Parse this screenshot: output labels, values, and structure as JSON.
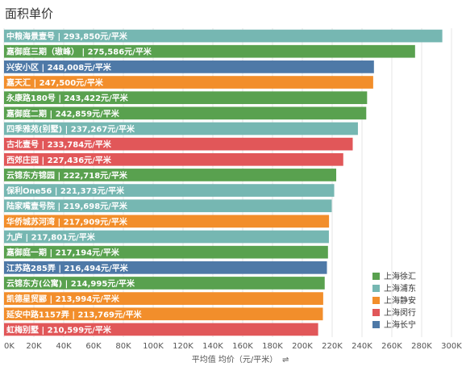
{
  "chart_data": {
    "type": "bar",
    "orientation": "horizontal",
    "title": "面积单价",
    "xlabel": "平均值 均价（元/平米）",
    "ylabel": "",
    "xlim": [
      0,
      300000
    ],
    "x_ticks": [
      "0K",
      "20K",
      "40K",
      "60K",
      "80K",
      "100K",
      "120K",
      "140K",
      "160K",
      "180K",
      "200K",
      "220K",
      "240K",
      "260K",
      "280K",
      "300K"
    ],
    "grid": true,
    "legend_position": "bottom-right",
    "bars": [
      {
        "label": "中粮海景壹号 | 293,850元/平米",
        "value": 293850,
        "group": "上海浦东"
      },
      {
        "label": "嘉御庭三期（璈峰） | 275,586元/平米",
        "value": 275586,
        "group": "上海徐汇"
      },
      {
        "label": "兴安小区 | 248,008元/平米",
        "value": 248008,
        "group": "上海长宁"
      },
      {
        "label": "嘉天汇 | 247,500元/平米",
        "value": 247500,
        "group": "上海静安"
      },
      {
        "label": "永康路180号 | 243,422元/平米",
        "value": 243422,
        "group": "上海徐汇"
      },
      {
        "label": "嘉御庭二期 | 242,859元/平米",
        "value": 242859,
        "group": "上海徐汇"
      },
      {
        "label": "四季雅苑(别墅) | 237,267元/平米",
        "value": 237267,
        "group": "上海浦东"
      },
      {
        "label": "古北壹号 | 233,784元/平米",
        "value": 233784,
        "group": "上海闵行"
      },
      {
        "label": "西郊庄园 | 227,436元/平米",
        "value": 227436,
        "group": "上海闵行"
      },
      {
        "label": "云锦东方锦园 | 222,718元/平米",
        "value": 222718,
        "group": "上海徐汇"
      },
      {
        "label": "保利One56 | 221,373元/平米",
        "value": 221373,
        "group": "上海浦东"
      },
      {
        "label": "陆家嘴壹号院 | 219,698元/平米",
        "value": 219698,
        "group": "上海浦东"
      },
      {
        "label": "华侨城苏河湾 | 217,909元/平米",
        "value": 217909,
        "group": "上海静安"
      },
      {
        "label": "九庐 | 217,801元/平米",
        "value": 217801,
        "group": "上海浦东"
      },
      {
        "label": "嘉御庭一期 | 217,194元/平米",
        "value": 217194,
        "group": "上海徐汇"
      },
      {
        "label": "江苏路285弄 | 216,494元/平米",
        "value": 216494,
        "group": "上海长宁"
      },
      {
        "label": "云锦东方(公寓) | 214,995元/平米",
        "value": 214995,
        "group": "上海徐汇"
      },
      {
        "label": "凯德星贸郦 | 213,994元/平米",
        "value": 213994,
        "group": "上海静安"
      },
      {
        "label": "延安中路1157弄 | 213,769元/平米",
        "value": 213769,
        "group": "上海静安"
      },
      {
        "label": "虹梅别墅 | 210,599元/平米",
        "value": 210599,
        "group": "上海闵行"
      }
    ],
    "legend": [
      {
        "name": "上海徐汇",
        "color": "#59a14f"
      },
      {
        "name": "上海浦东",
        "color": "#76b7b2"
      },
      {
        "name": "上海静安",
        "color": "#f28e2b"
      },
      {
        "name": "上海闵行",
        "color": "#e15759"
      },
      {
        "name": "上海长宁",
        "color": "#4e79a7"
      }
    ]
  }
}
